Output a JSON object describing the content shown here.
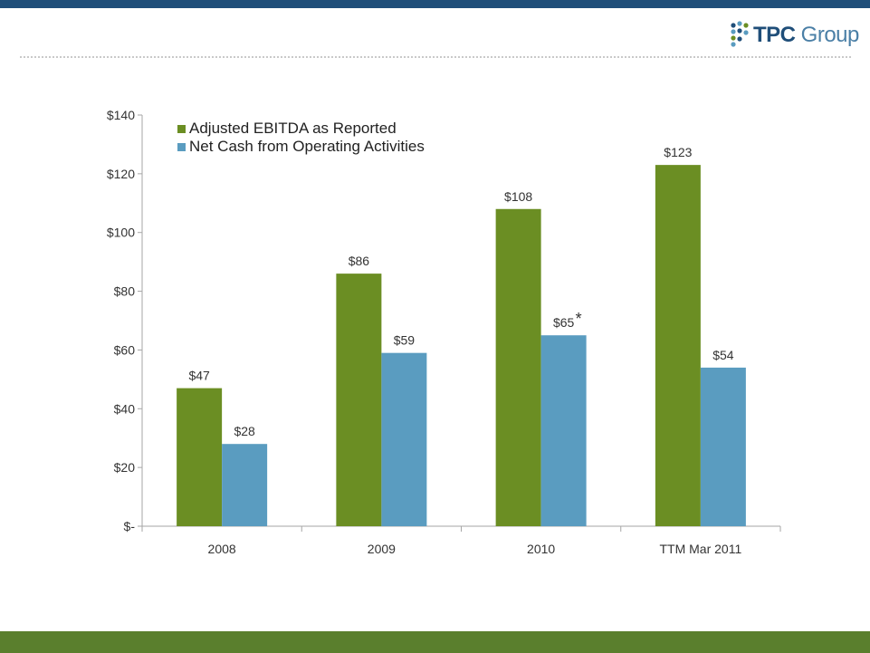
{
  "logo": {
    "brand": "TPC",
    "suffix": "Group"
  },
  "colors": {
    "header_bar": "#1f4e79",
    "footer_bar": "#5a7f2d",
    "series_ebitda": "#6b8e23",
    "series_cash": "#5a9cc0",
    "axis": "#a6a6a6"
  },
  "chart_data": {
    "type": "bar",
    "categories": [
      "2008",
      "2009",
      "2010",
      "TTM Mar 2011"
    ],
    "series": [
      {
        "name": "Adjusted EBITDA as Reported",
        "values": [
          47,
          86,
          108,
          123
        ],
        "labels": [
          "$47",
          "$86",
          "$108",
          "$123"
        ]
      },
      {
        "name": "Net Cash from Operating Activities",
        "values": [
          28,
          59,
          65,
          54
        ],
        "labels": [
          "$28",
          "$59",
          "$65",
          "$54"
        ]
      }
    ],
    "y_ticks": [
      0,
      20,
      40,
      60,
      80,
      100,
      120,
      140
    ],
    "y_tick_labels": [
      "$-",
      "$20",
      "$40",
      "$60",
      "$80",
      "$100",
      "$120",
      "$140"
    ],
    "ylim": [
      0,
      140
    ],
    "annotation": {
      "text": "*",
      "category": "2010",
      "series": "Net Cash from Operating Activities"
    },
    "legend_position": "top-left",
    "grid": false
  }
}
